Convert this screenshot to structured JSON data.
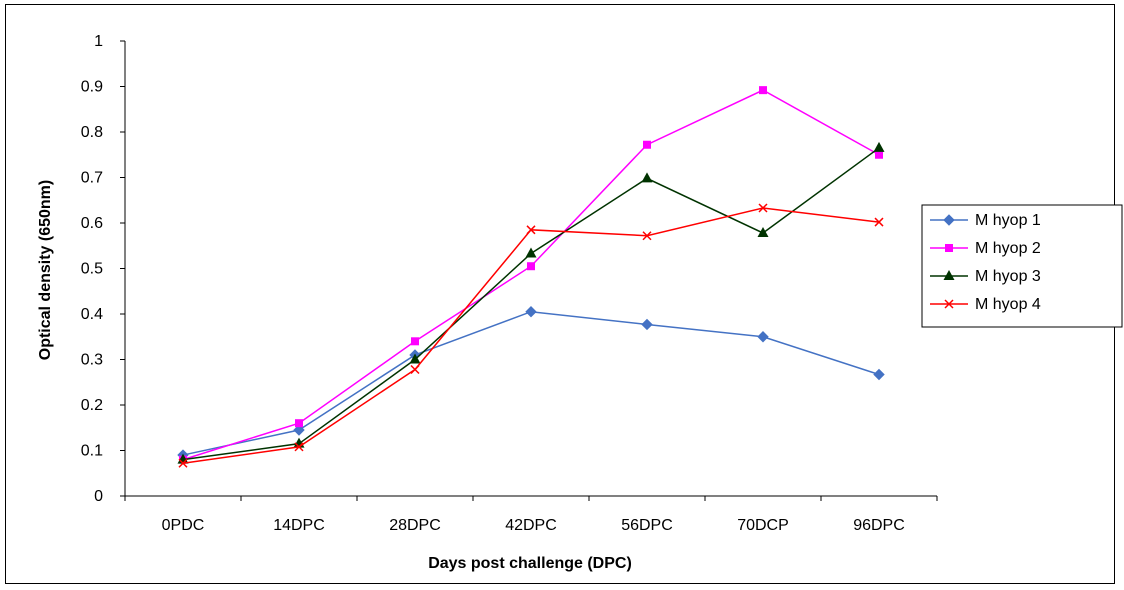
{
  "chart_data": {
    "type": "line",
    "xlabel": "Days post challenge (DPC)",
    "ylabel": "Optical density (650nm)",
    "categories": [
      "0PDC",
      "14DPC",
      "28DPC",
      "42DPC",
      "56DPC",
      "70DCP",
      "96DPC"
    ],
    "ylim": [
      0,
      1
    ],
    "yticks": [
      "0",
      "0.1",
      "0.2",
      "0.3",
      "0.4",
      "0.5",
      "0.6",
      "0.7",
      "0.8",
      "0.9",
      "1"
    ],
    "grid": false,
    "legend_position": "right",
    "series": [
      {
        "name": "M hyop 1",
        "color": "#4472C4",
        "marker": "diamond",
        "values": [
          0.09,
          0.145,
          0.31,
          0.405,
          0.377,
          0.35,
          0.267
        ]
      },
      {
        "name": "M hyop 2",
        "color": "#FF00FF",
        "marker": "square",
        "values": [
          0.08,
          0.16,
          0.34,
          0.505,
          0.772,
          0.892,
          0.75
        ]
      },
      {
        "name": "M hyop 3",
        "color": "#003300",
        "marker": "triangle",
        "values": [
          0.08,
          0.115,
          0.3,
          0.533,
          0.698,
          0.578,
          0.765
        ]
      },
      {
        "name": "M hyop 4",
        "color": "#FF0000",
        "marker": "x",
        "values": [
          0.072,
          0.108,
          0.278,
          0.585,
          0.572,
          0.633,
          0.602
        ]
      }
    ]
  }
}
